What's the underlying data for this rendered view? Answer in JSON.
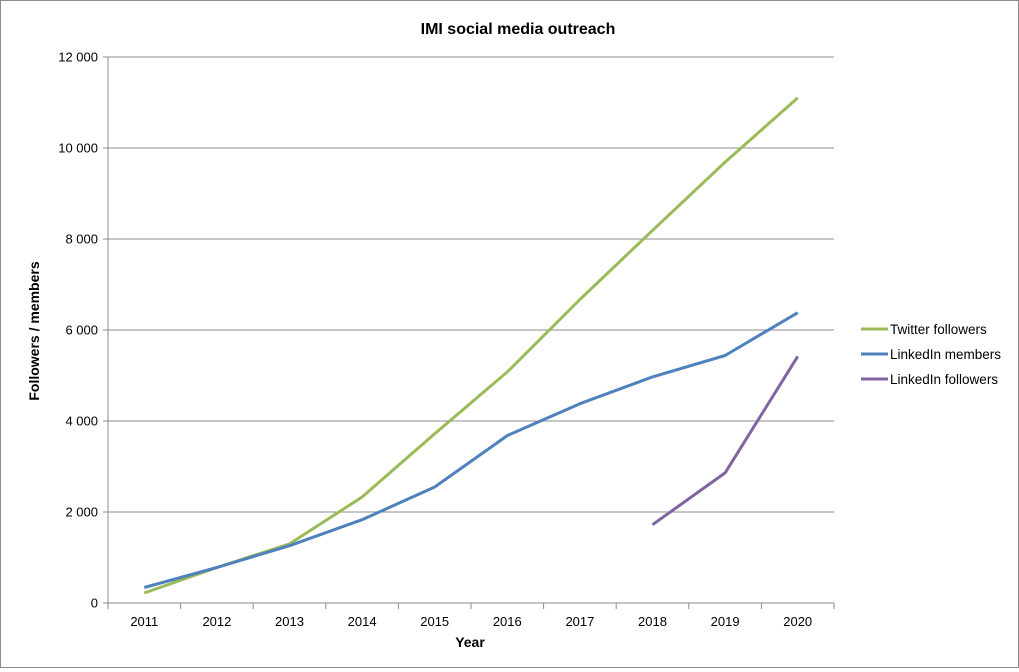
{
  "chart_data": {
    "type": "line",
    "title": "IMI social media outreach",
    "xlabel": "Year",
    "ylabel": "Followers / members",
    "categories": [
      "2011",
      "2012",
      "2013",
      "2014",
      "2015",
      "2016",
      "2017",
      "2018",
      "2019",
      "2020"
    ],
    "ylim": [
      0,
      12000
    ],
    "yticks": [
      0,
      2000,
      4000,
      6000,
      8000,
      10000,
      12000
    ],
    "ytick_labels": [
      "0",
      "2 000",
      "4 000",
      "6 000",
      "8 000",
      "10 000",
      "12 000"
    ],
    "grid": "horizontal",
    "legend_position": "right",
    "series": [
      {
        "name": "Twitter followers",
        "color": "#9BBB59",
        "values": [
          220,
          780,
          1300,
          2330,
          3720,
          5080,
          6670,
          8190,
          9690,
          11100
        ]
      },
      {
        "name": "LinkedIn members",
        "color": "#4F81BD",
        "values": [
          340,
          780,
          1260,
          1830,
          2550,
          3680,
          4380,
          4970,
          5440,
          6380
        ]
      },
      {
        "name": "LinkedIn followers",
        "color": "#8064A2",
        "values": [
          null,
          null,
          null,
          null,
          null,
          null,
          null,
          1720,
          2860,
          5420
        ]
      }
    ]
  }
}
